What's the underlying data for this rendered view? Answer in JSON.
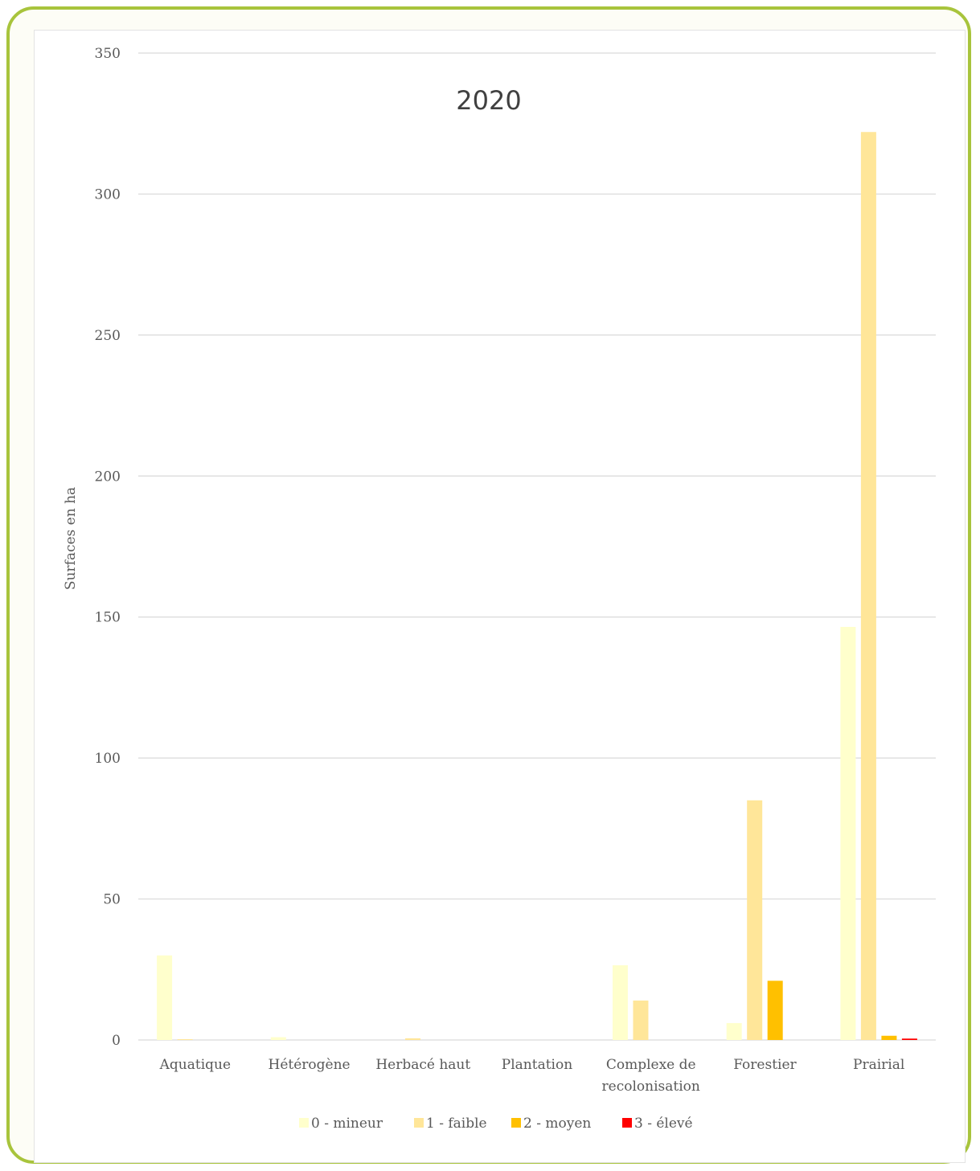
{
  "chart_data": {
    "type": "bar",
    "title": "2020",
    "xlabel": "",
    "ylabel": "Surfaces en ha",
    "categories": [
      "Aquatique",
      "Hétérogène",
      "Herbacé haut",
      "Plantation",
      "Complexe de recolonisation",
      "Forestier",
      "Prairial"
    ],
    "category_lines": [
      [
        "Aquatique"
      ],
      [
        "Hétérogène"
      ],
      [
        "Herbacé haut"
      ],
      [
        "Plantation"
      ],
      [
        "Complexe de",
        "recolonisation"
      ],
      [
        "Forestier"
      ],
      [
        "Prairial"
      ]
    ],
    "series": [
      {
        "name": "0 - mineur",
        "color": "#ffffcc",
        "values": [
          30,
          1,
          0,
          0,
          26.5,
          6,
          146.5
        ]
      },
      {
        "name": "1 - faible",
        "color": "#ffe699",
        "values": [
          0.3,
          0,
          0.6,
          0,
          14,
          85,
          322
        ]
      },
      {
        "name": "2 - moyen",
        "color": "#ffc000",
        "values": [
          0,
          0,
          0,
          0,
          0,
          21,
          1.5
        ]
      },
      {
        "name": "3 - élevé",
        "color": "#ff0000",
        "values": [
          0,
          0,
          0,
          0,
          0,
          0,
          0.5
        ]
      }
    ],
    "ylim": [
      0,
      350
    ],
    "yticks": [
      0,
      50,
      100,
      150,
      200,
      250,
      300,
      350
    ],
    "grid": true,
    "legend": "bottom"
  }
}
